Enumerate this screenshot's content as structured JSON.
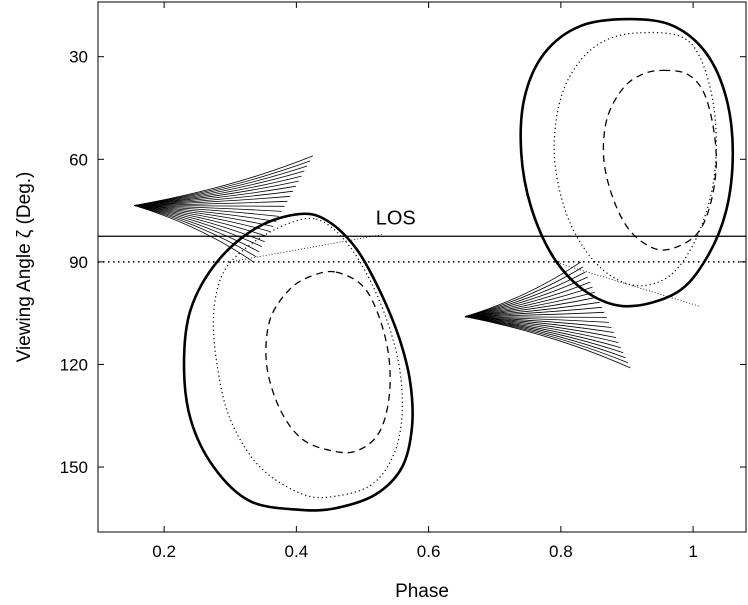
{
  "chart_data": {
    "type": "line",
    "title": "",
    "xlabel": "Phase",
    "ylabel": "Viewing Angle ζ  (Deg.)",
    "xlim": [
      0.1,
      1.08
    ],
    "ylim": [
      14,
      169
    ],
    "y_inverted": true,
    "grid": false,
    "legend": "none",
    "x_ticks": [
      0.2,
      0.4,
      0.6,
      0.8,
      1.0
    ],
    "x_tick_labels": [
      "0.2",
      "0.4",
      "0.6",
      "0.8",
      "1"
    ],
    "y_ticks": [
      30,
      60,
      90,
      120,
      150
    ],
    "y_tick_labels": [
      "30",
      "60",
      "90",
      "120",
      "150"
    ],
    "reference_lines": [
      {
        "name": "los-line",
        "y": 82.5,
        "style": "solid",
        "label": "LOS"
      },
      {
        "name": "equator-line",
        "y": 90,
        "style": "dotted",
        "label": ""
      }
    ],
    "annotations": [
      {
        "text": "LOS",
        "x": 0.57,
        "y": 79
      }
    ],
    "series": [
      {
        "id": "lower-outer-solid",
        "style": "solid-thick",
        "points": [
          [
            0.405,
            76
          ],
          [
            0.447,
            78
          ],
          [
            0.49,
            86
          ],
          [
            0.525,
            98
          ],
          [
            0.555,
            112
          ],
          [
            0.572,
            125
          ],
          [
            0.575,
            138
          ],
          [
            0.56,
            150
          ],
          [
            0.52,
            158
          ],
          [
            0.46,
            162
          ],
          [
            0.405,
            162.5
          ],
          [
            0.33,
            160
          ],
          [
            0.275,
            150
          ],
          [
            0.24,
            136
          ],
          [
            0.23,
            120
          ],
          [
            0.24,
            104
          ],
          [
            0.28,
            90
          ],
          [
            0.34,
            80
          ],
          [
            0.405,
            76
          ]
        ]
      },
      {
        "id": "lower-mid-dotted",
        "style": "dotted",
        "points": [
          [
            0.43,
            77.5
          ],
          [
            0.47,
            83
          ],
          [
            0.505,
            93
          ],
          [
            0.535,
            106
          ],
          [
            0.555,
            120
          ],
          [
            0.56,
            134
          ],
          [
            0.548,
            146
          ],
          [
            0.515,
            155
          ],
          [
            0.46,
            158.5
          ],
          [
            0.41,
            158
          ],
          [
            0.345,
            150
          ],
          [
            0.3,
            136
          ],
          [
            0.28,
            120
          ],
          [
            0.275,
            105
          ],
          [
            0.29,
            93
          ],
          [
            0.33,
            85
          ],
          [
            0.385,
            79
          ],
          [
            0.43,
            77.5
          ]
        ]
      },
      {
        "id": "lower-inner-dashed",
        "style": "dashed",
        "points": [
          [
            0.46,
            93
          ],
          [
            0.5,
            97
          ],
          [
            0.525,
            106
          ],
          [
            0.54,
            118
          ],
          [
            0.54,
            130
          ],
          [
            0.525,
            140
          ],
          [
            0.495,
            145
          ],
          [
            0.46,
            145.5
          ],
          [
            0.41,
            142
          ],
          [
            0.375,
            133
          ],
          [
            0.355,
            120
          ],
          [
            0.36,
            107
          ],
          [
            0.39,
            98
          ],
          [
            0.425,
            94
          ],
          [
            0.46,
            93
          ]
        ]
      },
      {
        "id": "upper-outer-solid",
        "style": "solid-thick",
        "points": [
          [
            0.905,
            19
          ],
          [
            0.97,
            21
          ],
          [
            1.02,
            29
          ],
          [
            1.05,
            42
          ],
          [
            1.06,
            58
          ],
          [
            1.05,
            75
          ],
          [
            1.02,
            89
          ],
          [
            0.975,
            99
          ],
          [
            0.9,
            103
          ],
          [
            0.84,
            99
          ],
          [
            0.79,
            89
          ],
          [
            0.755,
            74
          ],
          [
            0.74,
            58
          ],
          [
            0.745,
            42
          ],
          [
            0.775,
            29
          ],
          [
            0.83,
            21
          ],
          [
            0.905,
            19
          ]
        ]
      },
      {
        "id": "upper-mid-dotted",
        "style": "dotted",
        "points": [
          [
            0.92,
            23
          ],
          [
            0.98,
            24
          ],
          [
            1.01,
            30
          ],
          [
            1.03,
            43
          ],
          [
            1.035,
            58
          ],
          [
            1.025,
            72
          ],
          [
            1.0,
            85
          ],
          [
            0.965,
            94
          ],
          [
            0.92,
            97
          ],
          [
            0.875,
            94
          ],
          [
            0.835,
            86
          ],
          [
            0.805,
            74
          ],
          [
            0.79,
            58
          ],
          [
            0.8,
            42
          ],
          [
            0.83,
            31
          ],
          [
            0.87,
            25
          ],
          [
            0.92,
            23
          ]
        ]
      },
      {
        "id": "upper-inner-dashed",
        "style": "dashed",
        "points": [
          [
            0.955,
            34
          ],
          [
            0.99,
            35
          ],
          [
            1.015,
            40
          ],
          [
            1.03,
            50
          ],
          [
            1.035,
            62
          ],
          [
            1.025,
            74
          ],
          [
            1.005,
            82
          ],
          [
            0.97,
            86
          ],
          [
            0.94,
            86
          ],
          [
            0.905,
            81
          ],
          [
            0.88,
            72
          ],
          [
            0.865,
            60
          ],
          [
            0.87,
            48
          ],
          [
            0.895,
            39
          ],
          [
            0.925,
            35
          ],
          [
            0.955,
            34
          ]
        ]
      }
    ],
    "fans": [
      {
        "id": "left-fan",
        "count": 22,
        "apex": [
          0.155,
          73.5
        ],
        "end_start": [
          0.335,
          90
        ],
        "end_end": [
          0.425,
          59
        ],
        "break_from": [
          0.3,
          90
        ],
        "break_to": [
          0.53,
          82
        ]
      },
      {
        "id": "right-fan",
        "count": 22,
        "apex": [
          0.655,
          106
        ],
        "end_start": [
          0.83,
          90
        ],
        "end_end": [
          0.905,
          121
        ],
        "break_from": [
          0.79,
          90
        ],
        "break_to": [
          1.01,
          103
        ]
      }
    ]
  }
}
